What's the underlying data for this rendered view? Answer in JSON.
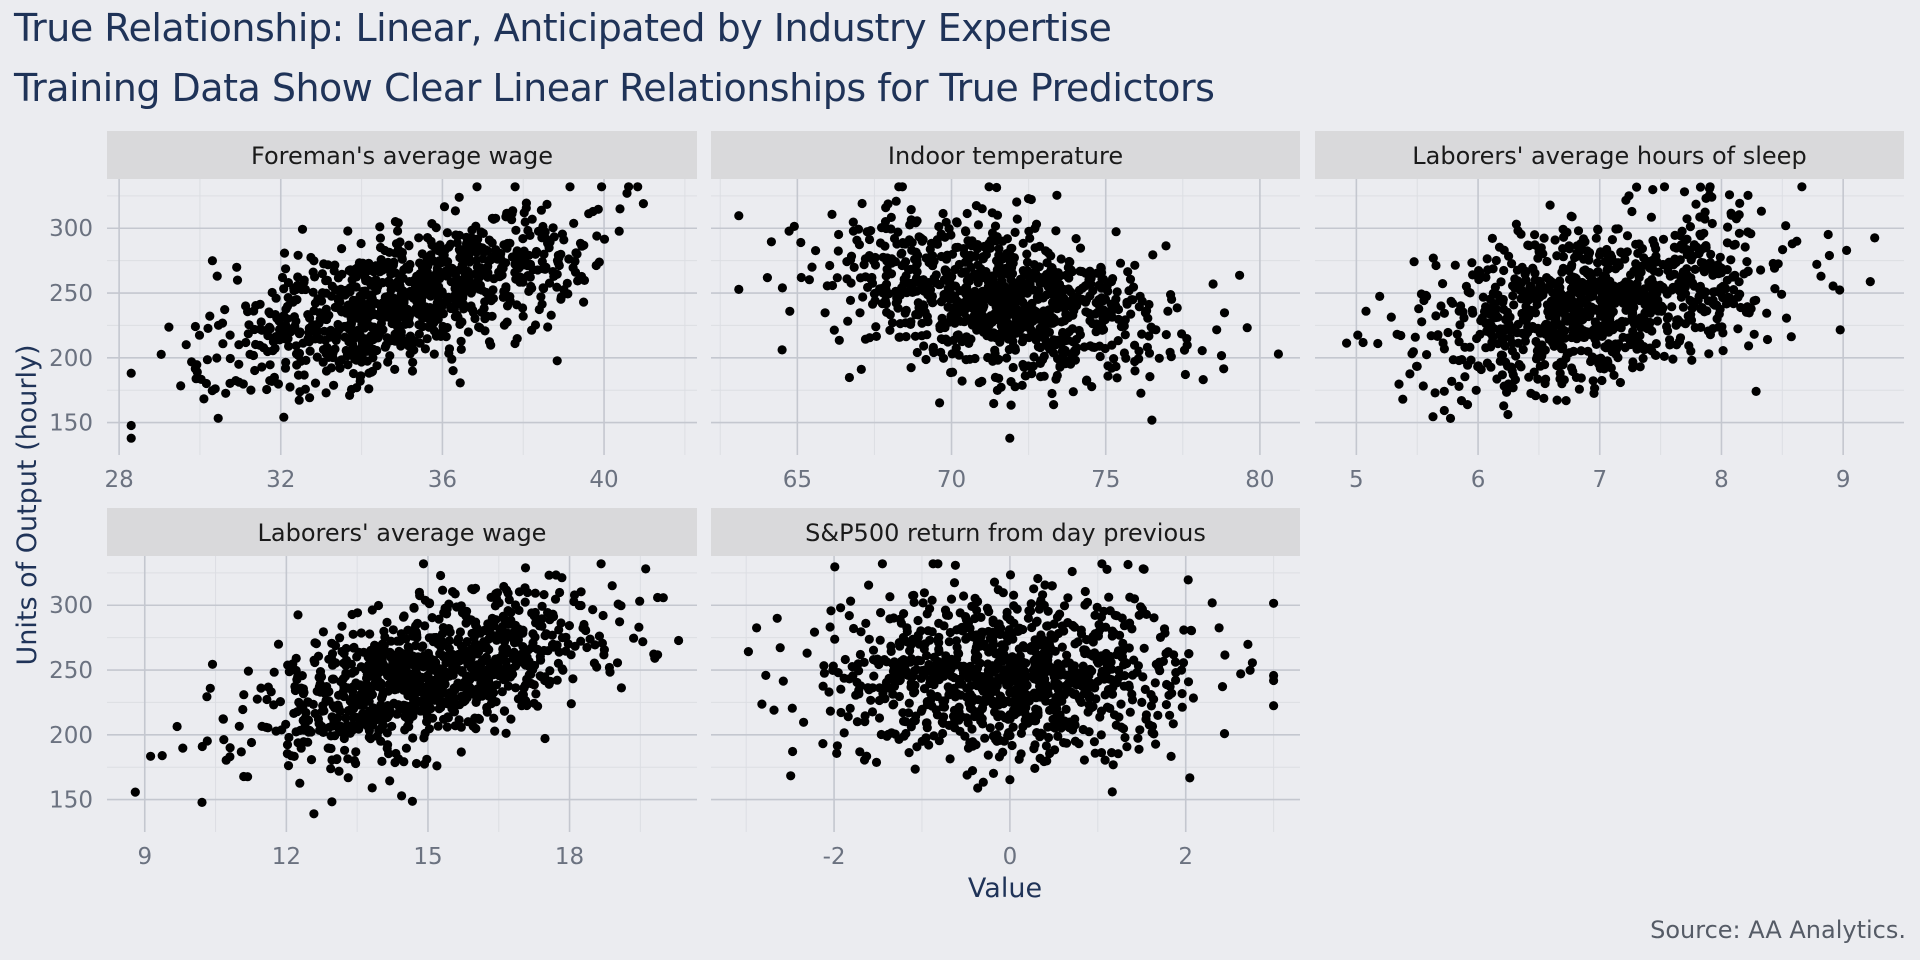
{
  "title": "True Relationship: Linear, Anticipated by Industry Expertise",
  "subtitle": "Training Data Show Clear Linear Relationships for True Predictors",
  "caption": "Source: AA Analytics.",
  "colors": {
    "background": "#ebecf0",
    "strip": "#d9d9db",
    "grid_major": "#c4c7cf",
    "grid_minor": "#dcdee3",
    "point": "#000000",
    "title": "#1f3358"
  },
  "chart_data": {
    "type": "scatter",
    "xlabel": "Value",
    "ylabel": "Units of Output (hourly)",
    "ylim": [
      125,
      338
    ],
    "y_ticks": [
      150,
      200,
      250,
      300
    ],
    "grid": true,
    "n_points_per_panel": 1000,
    "panels": [
      {
        "name": "Foreman's average wage",
        "xlim": [
          27.7,
          42.3
        ],
        "x_ticks": [
          28,
          32,
          36,
          40
        ],
        "x_tick_labels": [
          "28",
          "32",
          "36",
          "40"
        ],
        "center_x": 35.0,
        "sd_x": 2.2,
        "center_y": 245,
        "sd_y": 32,
        "correlation": 0.62,
        "approx_x_range": [
          28.3,
          41.8
        ]
      },
      {
        "name": "Indoor temperature",
        "xlim": [
          62.2,
          81.3
        ],
        "x_ticks": [
          65,
          70,
          75,
          80
        ],
        "x_tick_labels": [
          "65",
          "70",
          "75",
          "80"
        ],
        "center_x": 71.5,
        "sd_x": 2.6,
        "center_y": 245,
        "sd_y": 32,
        "correlation": -0.35,
        "approx_x_range": [
          63.1,
          80.6
        ]
      },
      {
        "name": "Laborers' average hours of sleep",
        "xlim": [
          4.66,
          9.5
        ],
        "x_ticks": [
          5,
          6,
          7,
          8,
          9
        ],
        "x_tick_labels": [
          "5",
          "6",
          "7",
          "8",
          "9"
        ],
        "center_x": 7.0,
        "sd_x": 0.72,
        "center_y": 245,
        "sd_y": 32,
        "correlation": 0.38,
        "approx_x_range": [
          4.9,
          9.3
        ]
      },
      {
        "name": "Laborers' average wage",
        "xlim": [
          8.2,
          20.7
        ],
        "x_ticks": [
          9,
          12,
          15,
          18
        ],
        "x_tick_labels": [
          "9",
          "12",
          "15",
          "18"
        ],
        "center_x": 15.0,
        "sd_x": 1.8,
        "center_y": 245,
        "sd_y": 32,
        "correlation": 0.55,
        "approx_x_range": [
          8.8,
          20.4
        ]
      },
      {
        "name": "S&P500 return from day previous",
        "xlim": [
          -3.4,
          3.3
        ],
        "x_ticks": [
          -2,
          0,
          2
        ],
        "x_tick_labels": [
          "-2",
          "0",
          "2"
        ],
        "center_x": 0.0,
        "sd_x": 1.0,
        "center_y": 245,
        "sd_y": 32,
        "correlation": 0.0,
        "approx_x_range": [
          -3.3,
          3.0
        ]
      }
    ]
  }
}
